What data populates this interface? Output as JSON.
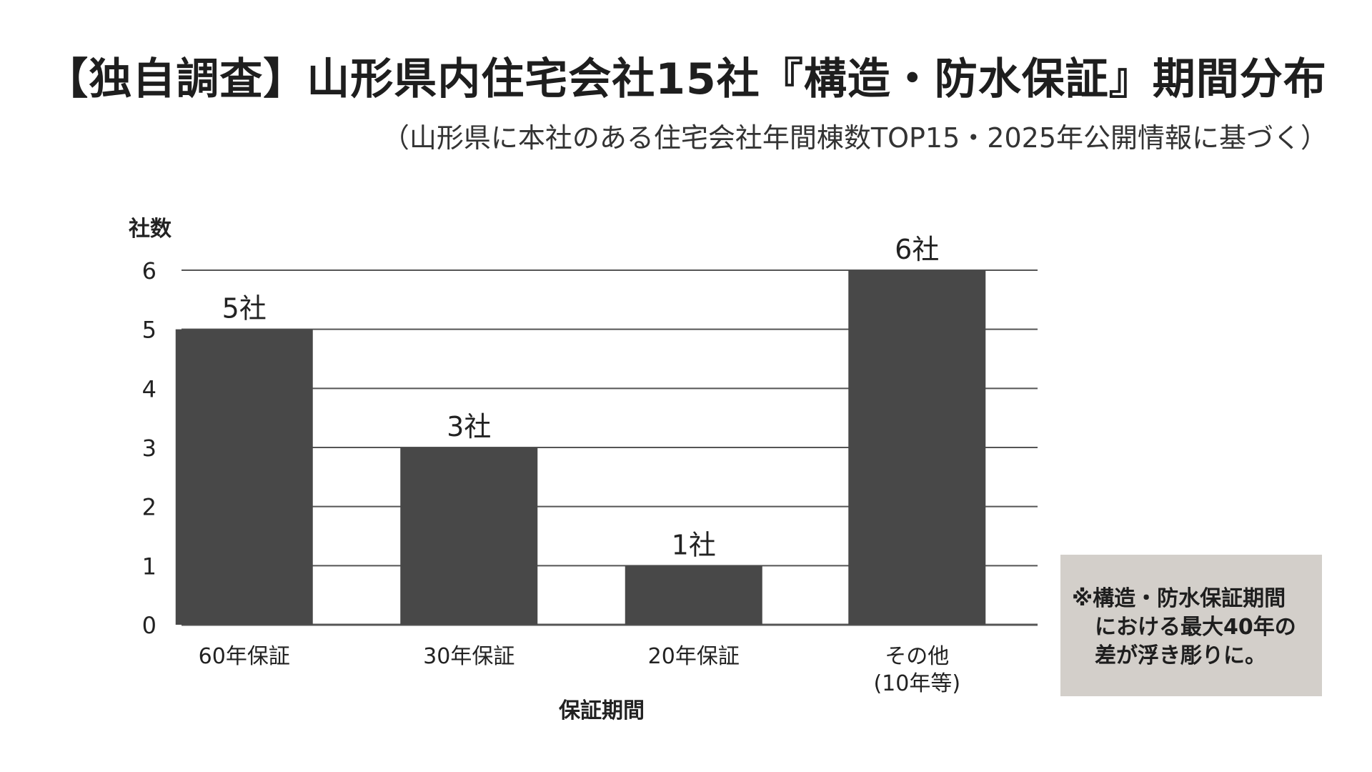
{
  "title": "【独自調査】山形県内住宅会社15社『構造・防水保証』期間分布",
  "subtitle": "（山形県に本社のある住宅会社年間棟数TOP15・2025年公開情報に基づく）",
  "note": {
    "line1": "※構造・防水保証期間",
    "line2": "における最大40年の",
    "line3": "差が浮き彫りに。"
  },
  "colors": {
    "bar": "#484848",
    "grid": "#555555",
    "note_bg": "#d3cfca",
    "text": "#222222"
  },
  "chart_data": {
    "type": "bar",
    "ylabel": "社数",
    "xlabel": "保証期間",
    "ylim": [
      0,
      6
    ],
    "yticks": [
      "0",
      "1",
      "2",
      "3",
      "4",
      "5",
      "6"
    ],
    "grid": true,
    "categories": [
      [
        "60年保証"
      ],
      [
        "30年保証"
      ],
      [
        "20年保証"
      ],
      [
        "その他",
        "(10年等)"
      ]
    ],
    "values": [
      5,
      3,
      1,
      6
    ],
    "data_labels": [
      "5社",
      "3社",
      "1社",
      "6社"
    ]
  }
}
